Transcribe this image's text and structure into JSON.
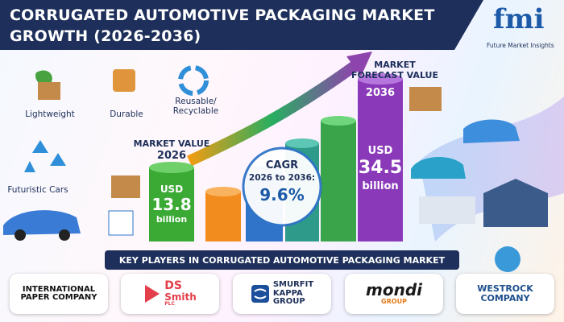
{
  "header": {
    "title_lines": [
      "CORRUGATED AUTOMOTIVE PACKAGING MARKET",
      "GROWTH (2026-2036)"
    ],
    "logo": {
      "mark": "fmi",
      "name": "Future Market Insights"
    }
  },
  "features": [
    "Lightweight",
    "Durable",
    "Reusable/ Recyclable",
    "Futuristic Cars"
  ],
  "market_value": {
    "label": "MARKET VALUE",
    "year": "2026",
    "currency": "USD",
    "value": 13.8,
    "unit": "billion"
  },
  "forecast": {
    "label": "MARKET FORECAST VALUE",
    "year": "2036",
    "currency": "USD",
    "value": 34.5,
    "unit": "billion"
  },
  "cagr": {
    "label": "CAGR",
    "period": "2026 to 2036:",
    "value": "9.6%"
  },
  "key_players": {
    "title": "KEY PLAYERS IN CORRUGATED AUTOMOTIVE PACKAGING MARKET",
    "companies": [
      {
        "lines": [
          "INTERNATIONAL",
          "PAPER COMPANY"
        ]
      },
      {
        "lines": [
          "DS",
          "Smith",
          "PLC"
        ]
      },
      {
        "lines": [
          "SMURFIT",
          "KAPPA",
          "GROUP"
        ]
      },
      {
        "lines": [
          "mondi",
          "GROUP"
        ]
      },
      {
        "lines": [
          "WESTROCK",
          "COMPANY"
        ]
      }
    ]
  }
}
